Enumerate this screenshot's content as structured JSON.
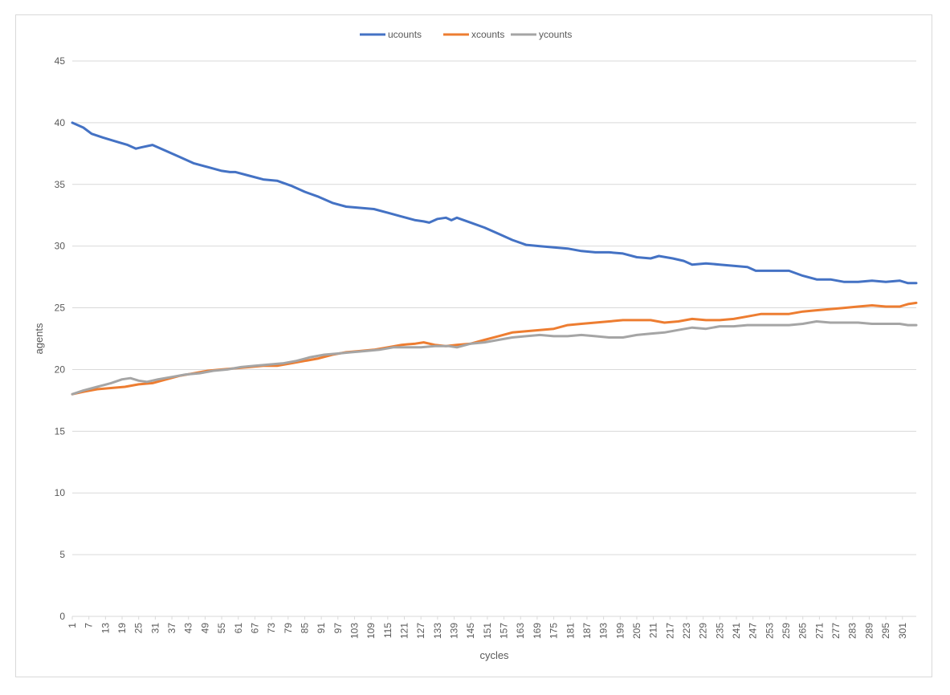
{
  "chart_data": {
    "type": "line",
    "title": "",
    "xlabel": "cycles",
    "ylabel": "agents",
    "ylim": [
      0,
      45
    ],
    "yticks": [
      0,
      5,
      10,
      15,
      20,
      25,
      30,
      35,
      40,
      45
    ],
    "xlim": [
      1,
      306
    ],
    "xtick_start": 1,
    "xtick_step": 6,
    "xtick_end": 301,
    "grid": true,
    "legend_position": "top",
    "series": [
      {
        "name": "ucounts",
        "color": "#4472C4",
        "x": [
          1,
          5,
          8,
          12,
          15,
          18,
          21,
          24,
          26,
          30,
          35,
          40,
          45,
          50,
          55,
          58,
          60,
          65,
          70,
          75,
          80,
          85,
          90,
          95,
          100,
          105,
          110,
          115,
          120,
          125,
          128,
          130,
          133,
          136,
          138,
          140,
          145,
          150,
          155,
          160,
          165,
          170,
          175,
          180,
          185,
          190,
          195,
          200,
          205,
          210,
          213,
          218,
          222,
          225,
          230,
          235,
          240,
          245,
          248,
          250,
          255,
          260,
          265,
          270,
          275,
          280,
          285,
          290,
          295,
          300,
          303,
          306
        ],
        "values": [
          40.0,
          39.6,
          39.1,
          38.8,
          38.6,
          38.4,
          38.2,
          37.9,
          38.0,
          38.2,
          37.7,
          37.2,
          36.7,
          36.4,
          36.1,
          36.0,
          36.0,
          35.7,
          35.4,
          35.3,
          34.9,
          34.4,
          34.0,
          33.5,
          33.2,
          33.1,
          33.0,
          32.7,
          32.4,
          32.1,
          32.0,
          31.9,
          32.2,
          32.3,
          32.1,
          32.3,
          31.9,
          31.5,
          31.0,
          30.5,
          30.1,
          30.0,
          29.9,
          29.8,
          29.6,
          29.5,
          29.5,
          29.4,
          29.1,
          29.0,
          29.2,
          29.0,
          28.8,
          28.5,
          28.6,
          28.5,
          28.4,
          28.3,
          28.0,
          28.0,
          28.0,
          28.0,
          27.6,
          27.3,
          27.3,
          27.1,
          27.1,
          27.2,
          27.1,
          27.2,
          27.0,
          27.0
        ]
      },
      {
        "name": "xcounts",
        "color": "#ED7D31",
        "x": [
          1,
          5,
          10,
          15,
          20,
          25,
          30,
          35,
          40,
          45,
          50,
          55,
          60,
          65,
          70,
          75,
          80,
          85,
          90,
          95,
          100,
          105,
          110,
          115,
          120,
          125,
          128,
          132,
          136,
          140,
          145,
          150,
          155,
          160,
          165,
          170,
          175,
          180,
          185,
          190,
          195,
          200,
          205,
          210,
          215,
          220,
          225,
          230,
          235,
          240,
          245,
          250,
          255,
          260,
          265,
          270,
          275,
          280,
          285,
          290,
          295,
          300,
          303,
          306
        ],
        "values": [
          18.0,
          18.2,
          18.4,
          18.5,
          18.6,
          18.8,
          18.9,
          19.2,
          19.5,
          19.7,
          19.9,
          20.0,
          20.1,
          20.2,
          20.3,
          20.3,
          20.5,
          20.7,
          20.9,
          21.2,
          21.4,
          21.5,
          21.6,
          21.8,
          22.0,
          22.1,
          22.2,
          22.0,
          21.9,
          22.0,
          22.1,
          22.4,
          22.7,
          23.0,
          23.1,
          23.2,
          23.3,
          23.6,
          23.7,
          23.8,
          23.9,
          24.0,
          24.0,
          24.0,
          23.8,
          23.9,
          24.1,
          24.0,
          24.0,
          24.1,
          24.3,
          24.5,
          24.5,
          24.5,
          24.7,
          24.8,
          24.9,
          25.0,
          25.1,
          25.2,
          25.1,
          25.1,
          25.3,
          25.4
        ]
      },
      {
        "name": "ycounts",
        "color": "#A5A5A5",
        "x": [
          1,
          5,
          10,
          15,
          19,
          22,
          25,
          28,
          32,
          37,
          42,
          47,
          52,
          57,
          62,
          67,
          72,
          77,
          82,
          87,
          92,
          97,
          102,
          107,
          112,
          117,
          122,
          127,
          132,
          137,
          140,
          145,
          150,
          155,
          160,
          165,
          170,
          175,
          180,
          185,
          190,
          195,
          200,
          205,
          210,
          215,
          220,
          225,
          230,
          235,
          240,
          245,
          250,
          255,
          260,
          265,
          270,
          275,
          280,
          285,
          290,
          295,
          300,
          303,
          306
        ],
        "values": [
          18.0,
          18.3,
          18.6,
          18.9,
          19.2,
          19.3,
          19.1,
          19.0,
          19.2,
          19.4,
          19.6,
          19.7,
          19.9,
          20.0,
          20.2,
          20.3,
          20.4,
          20.5,
          20.7,
          21.0,
          21.2,
          21.3,
          21.4,
          21.5,
          21.6,
          21.8,
          21.8,
          21.8,
          21.9,
          21.9,
          21.8,
          22.1,
          22.2,
          22.4,
          22.6,
          22.7,
          22.8,
          22.7,
          22.7,
          22.8,
          22.7,
          22.6,
          22.6,
          22.8,
          22.9,
          23.0,
          23.2,
          23.4,
          23.3,
          23.5,
          23.5,
          23.6,
          23.6,
          23.6,
          23.6,
          23.7,
          23.9,
          23.8,
          23.8,
          23.8,
          23.7,
          23.7,
          23.7,
          23.6,
          23.6
        ]
      }
    ]
  }
}
